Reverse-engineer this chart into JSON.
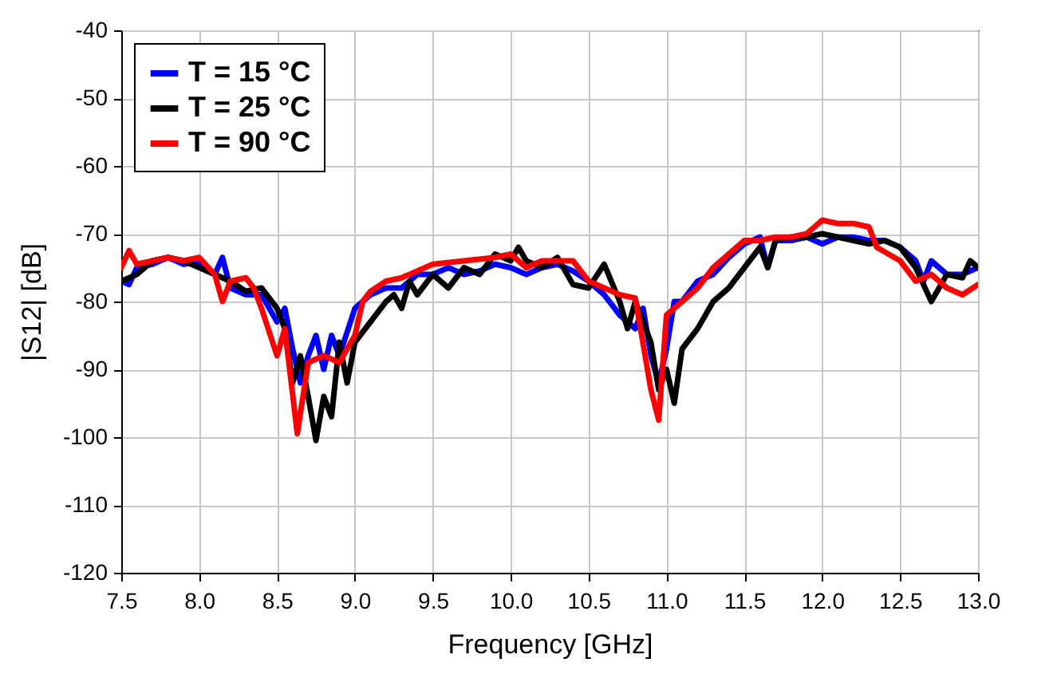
{
  "chart_data": {
    "type": "line",
    "xlabel": "Frequency [GHz]",
    "ylabel": "|S12| [dB]",
    "xlim": [
      7.5,
      13
    ],
    "ylim": [
      -120,
      -40
    ],
    "xticks": [
      7.5,
      {
        "value": 8,
        "label": "8.0"
      },
      8.5,
      {
        "value": 9,
        "label": "9.0"
      },
      9.5,
      {
        "value": 10,
        "label": "10.0"
      },
      10.5,
      {
        "value": 11,
        "label": "11.0"
      },
      11.5,
      {
        "value": 12,
        "label": "12.0"
      },
      12.5,
      {
        "value": 13,
        "label": "13.0"
      }
    ],
    "yticks": [
      -120,
      -110,
      -100,
      -90,
      -80,
      -70,
      -60,
      -50,
      -40
    ],
    "grid": true,
    "legend": "top left",
    "line_style": "solid",
    "marker": "none",
    "series": [
      {
        "name": "T = 15 °C",
        "color": "#0000ff",
        "x": [
          7.5,
          7.55,
          7.6,
          7.7,
          7.8,
          7.9,
          8.0,
          8.1,
          8.15,
          8.2,
          8.3,
          8.4,
          8.5,
          8.55,
          8.6,
          8.65,
          8.7,
          8.75,
          8.8,
          8.85,
          8.9,
          9.0,
          9.1,
          9.2,
          9.3,
          9.4,
          9.5,
          9.6,
          9.7,
          9.8,
          9.9,
          10.0,
          10.1,
          10.2,
          10.3,
          10.4,
          10.5,
          10.6,
          10.7,
          10.8,
          10.85,
          10.9,
          10.95,
          11.0,
          11.05,
          11.1,
          11.2,
          11.3,
          11.4,
          11.5,
          11.6,
          11.65,
          11.7,
          11.8,
          11.9,
          12.0,
          12.1,
          12.2,
          12.3,
          12.4,
          12.5,
          12.6,
          12.65,
          12.7,
          12.8,
          12.9,
          13.0
        ],
        "values": [
          -77,
          -77.5,
          -75,
          -74.5,
          -73.5,
          -74.5,
          -74,
          -76,
          -73.5,
          -78,
          -79,
          -79,
          -83,
          -81,
          -87,
          -92,
          -88,
          -85,
          -90,
          -85,
          -88,
          -81,
          -79,
          -78,
          -78,
          -76,
          -76,
          -75,
          -76,
          -75.5,
          -74.5,
          -75,
          -76,
          -75,
          -74.5,
          -75.5,
          -77,
          -79,
          -82,
          -84,
          -81,
          -88,
          -92,
          -87,
          -80,
          -80,
          -77,
          -76,
          -73.5,
          -71.5,
          -70.5,
          -75,
          -71,
          -71,
          -70.5,
          -71.5,
          -70.5,
          -70.5,
          -71,
          -71,
          -72,
          -74,
          -77,
          -74,
          -76,
          -76,
          -75
        ]
      },
      {
        "name": "T = 25 °C",
        "color": "#000000",
        "x": [
          7.5,
          7.6,
          7.7,
          7.8,
          7.9,
          8.0,
          8.1,
          8.2,
          8.3,
          8.4,
          8.5,
          8.55,
          8.6,
          8.65,
          8.7,
          8.75,
          8.8,
          8.85,
          8.9,
          8.95,
          9.0,
          9.1,
          9.2,
          9.25,
          9.3,
          9.35,
          9.4,
          9.5,
          9.6,
          9.7,
          9.8,
          9.9,
          10.0,
          10.05,
          10.1,
          10.2,
          10.3,
          10.4,
          10.5,
          10.6,
          10.7,
          10.75,
          10.8,
          10.9,
          10.95,
          11.0,
          11.05,
          11.1,
          11.2,
          11.3,
          11.4,
          11.5,
          11.6,
          11.65,
          11.7,
          11.8,
          11.9,
          12.0,
          12.1,
          12.2,
          12.3,
          12.4,
          12.5,
          12.6,
          12.7,
          12.8,
          12.9,
          12.95,
          13.0
        ],
        "values": [
          -77,
          -76,
          -74,
          -73.5,
          -74,
          -75,
          -76,
          -77,
          -78.5,
          -78,
          -81,
          -84,
          -92,
          -88,
          -94,
          -100.5,
          -94,
          -97,
          -86,
          -92,
          -86,
          -83,
          -80,
          -79,
          -81,
          -77,
          -79,
          -76,
          -78,
          -75,
          -76,
          -73,
          -74,
          -72,
          -74,
          -75,
          -73.5,
          -77.5,
          -78,
          -74.5,
          -80,
          -84,
          -80,
          -86,
          -93,
          -90,
          -95,
          -87,
          -84,
          -80,
          -78,
          -75,
          -72,
          -75,
          -71,
          -70.5,
          -70.5,
          -70,
          -70.5,
          -71,
          -71.5,
          -71,
          -72,
          -75,
          -80,
          -76,
          -76.5,
          -74,
          -75
        ]
      },
      {
        "name": "T = 90 °C",
        "color": "#ff0000",
        "x": [
          7.5,
          7.55,
          7.6,
          7.7,
          7.8,
          7.9,
          8.0,
          8.1,
          8.15,
          8.2,
          8.3,
          8.35,
          8.4,
          8.5,
          8.55,
          8.63,
          8.7,
          8.8,
          8.9,
          9.0,
          9.05,
          9.1,
          9.2,
          9.3,
          9.5,
          9.7,
          9.9,
          10.0,
          10.1,
          10.2,
          10.4,
          10.5,
          10.6,
          10.7,
          10.8,
          10.9,
          10.95,
          11.0,
          11.1,
          11.2,
          11.3,
          11.4,
          11.5,
          11.6,
          11.7,
          11.8,
          11.9,
          12.0,
          12.1,
          12.2,
          12.3,
          12.35,
          12.5,
          12.6,
          12.7,
          12.8,
          12.9,
          13.0
        ],
        "values": [
          -75,
          -72.5,
          -74.5,
          -74,
          -73.5,
          -74,
          -73.5,
          -76,
          -80,
          -77,
          -76.5,
          -78,
          -81,
          -88,
          -84,
          -99.5,
          -89,
          -88,
          -89,
          -85,
          -80,
          -78.5,
          -77,
          -76.5,
          -74.5,
          -74,
          -73.5,
          -73,
          -75,
          -74,
          -74,
          -77,
          -78,
          -79,
          -79.5,
          -93,
          -97.5,
          -82,
          -80,
          -78,
          -75,
          -73,
          -71,
          -71,
          -70.5,
          -70.5,
          -70,
          -68,
          -68.5,
          -68.5,
          -69,
          -72,
          -74,
          -77,
          -76,
          -78,
          -79,
          -77.5
        ]
      }
    ]
  }
}
